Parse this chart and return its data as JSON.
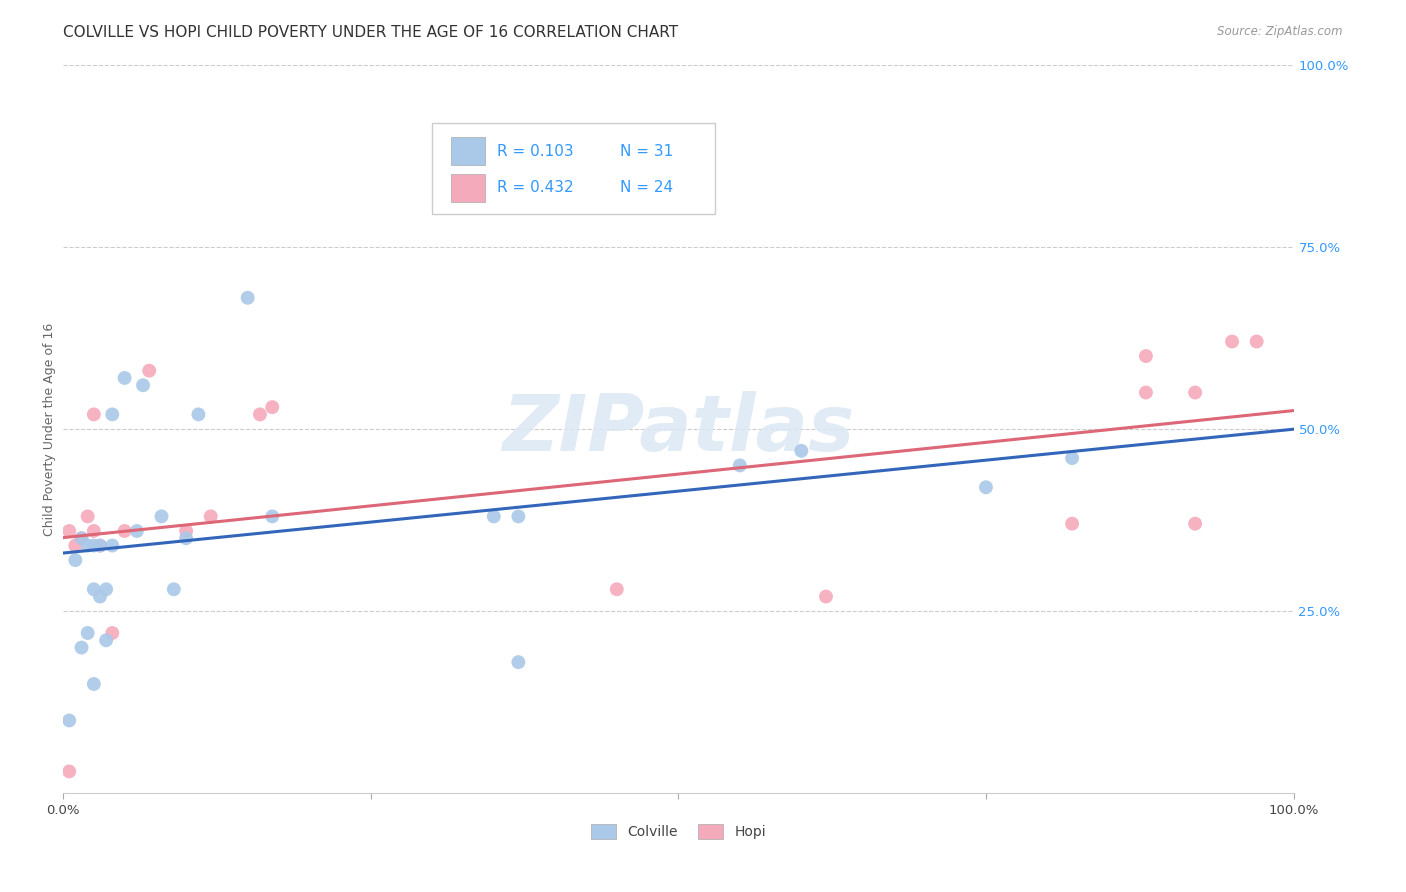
{
  "title": "COLVILLE VS HOPI CHILD POVERTY UNDER THE AGE OF 16 CORRELATION CHART",
  "source": "Source: ZipAtlas.com",
  "ylabel": "Child Poverty Under the Age of 16",
  "xlim": [
    0,
    1
  ],
  "ylim": [
    0,
    1
  ],
  "background_color": "#ffffff",
  "grid_color": "#cccccc",
  "colville_color": "#aac8e8",
  "hopi_color": "#f5aabb",
  "colville_line_color": "#3366bb",
  "hopi_line_color": "#dd6677",
  "legend_R_colville": "0.103",
  "legend_N_colville": "31",
  "legend_R_hopi": "0.432",
  "legend_N_hopi": "24",
  "R_color": "#3399ff",
  "tick_color": "#3399ff",
  "colville_x": [
    0.005,
    0.01,
    0.015,
    0.015,
    0.02,
    0.02,
    0.025,
    0.025,
    0.025,
    0.03,
    0.03,
    0.035,
    0.035,
    0.04,
    0.04,
    0.05,
    0.06,
    0.065,
    0.08,
    0.09,
    0.1,
    0.11,
    0.15,
    0.17,
    0.35,
    0.37,
    0.37,
    0.55,
    0.6,
    0.75,
    0.82
  ],
  "colville_y": [
    0.1,
    0.32,
    0.35,
    0.2,
    0.34,
    0.22,
    0.34,
    0.28,
    0.15,
    0.34,
    0.27,
    0.21,
    0.28,
    0.34,
    0.52,
    0.57,
    0.36,
    0.56,
    0.38,
    0.28,
    0.35,
    0.52,
    0.68,
    0.38,
    0.38,
    0.38,
    0.18,
    0.45,
    0.47,
    0.42,
    0.46
  ],
  "hopi_x": [
    0.005,
    0.01,
    0.015,
    0.02,
    0.025,
    0.03,
    0.04,
    0.05,
    0.07,
    0.1,
    0.12,
    0.16,
    0.17,
    0.45,
    0.62,
    0.82,
    0.88,
    0.88,
    0.92,
    0.92,
    0.95,
    0.97,
    0.005,
    0.025
  ],
  "hopi_y": [
    0.03,
    0.34,
    0.35,
    0.38,
    0.36,
    0.34,
    0.22,
    0.36,
    0.58,
    0.36,
    0.38,
    0.52,
    0.53,
    0.28,
    0.27,
    0.37,
    0.55,
    0.6,
    0.37,
    0.55,
    0.62,
    0.62,
    0.36,
    0.52
  ],
  "watermark": "ZIPatlas",
  "marker_size": 100,
  "title_fontsize": 11,
  "axis_label_fontsize": 9,
  "tick_fontsize": 9.5,
  "ytick_positions": [
    0.25,
    0.5,
    0.75,
    1.0
  ],
  "ytick_labels": [
    "25.0%",
    "50.0%",
    "75.0%",
    "100.0%"
  ],
  "xtick_positions": [
    0.0,
    0.25,
    0.5,
    0.75,
    1.0
  ],
  "xtick_labels": [
    "0.0%",
    "",
    "",
    "",
    "100.0%"
  ]
}
